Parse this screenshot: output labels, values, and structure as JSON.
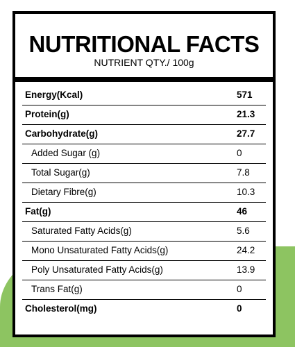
{
  "header": {
    "title": "NUTRITIONAL FACTS",
    "subtitle": "NUTRIENT QTY./ 100g"
  },
  "nutrients": [
    {
      "name": "Energy(Kcal)",
      "value": "571",
      "bold": true,
      "sub": false
    },
    {
      "name": "Protein(g)",
      "value": "21.3",
      "bold": true,
      "sub": false
    },
    {
      "name": "Carbohydrate(g)",
      "value": "27.7",
      "bold": true,
      "sub": false
    },
    {
      "name": "Added Sugar (g)",
      "value": "0",
      "bold": false,
      "sub": true
    },
    {
      "name": "Total Sugar(g)",
      "value": "7.8",
      "bold": false,
      "sub": true
    },
    {
      "name": "Dietary Fibre(g)",
      "value": "10.3",
      "bold": false,
      "sub": true
    },
    {
      "name": "Fat(g)",
      "value": "46",
      "bold": true,
      "sub": false
    },
    {
      "name": "Saturated Fatty Acids(g)",
      "value": "5.6",
      "bold": false,
      "sub": true
    },
    {
      "name": "Mono Unsaturated Fatty Acids(g)",
      "value": "24.2",
      "bold": false,
      "sub": true
    },
    {
      "name": "Poly Unsaturated Fatty Acids(g)",
      "value": "13.9",
      "bold": false,
      "sub": true
    },
    {
      "name": "Trans Fat(g)",
      "value": "0",
      "bold": false,
      "sub": true
    },
    {
      "name": "Cholesterol(mg)",
      "value": "0",
      "bold": true,
      "sub": false
    }
  ],
  "colors": {
    "background_accent": "#8dc461",
    "border": "#000000"
  }
}
